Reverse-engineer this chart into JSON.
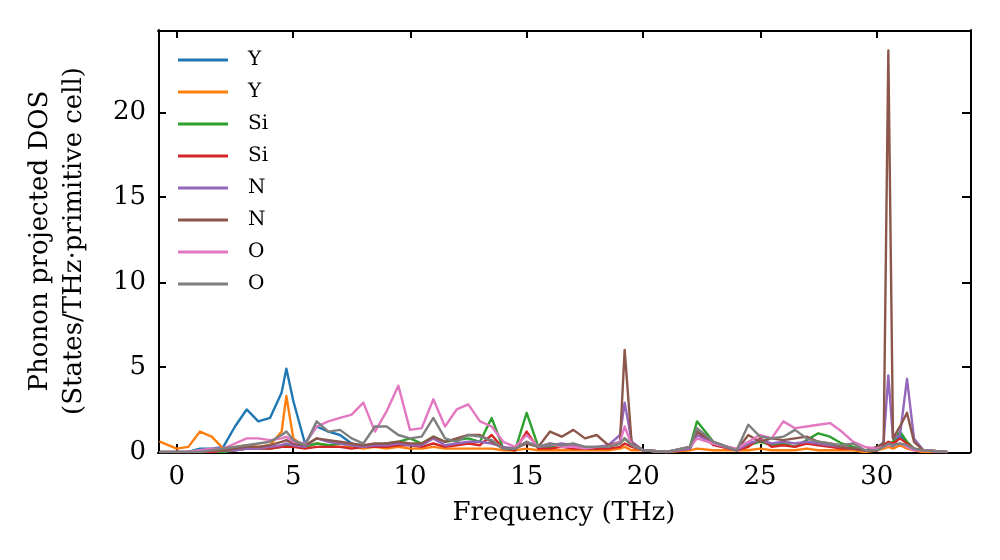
{
  "chart_data": {
    "type": "line",
    "xlabel": "Frequency (THz)",
    "ylabel": "Phonon projected DOS\n(States/THz·primitive cell)",
    "x": [
      -0.7,
      0,
      0.5,
      1,
      1.5,
      2,
      2.5,
      3,
      3.5,
      4,
      4.5,
      4.7,
      5,
      5.5,
      6,
      6.5,
      7,
      7.5,
      8,
      8.5,
      9,
      9.5,
      10,
      10.5,
      11,
      11.5,
      12,
      12.5,
      13,
      13.5,
      14,
      14.5,
      15,
      15.5,
      16,
      16.5,
      17,
      17.5,
      18,
      18.5,
      19,
      19.2,
      19.5,
      20,
      21,
      22,
      22.3,
      23,
      24,
      24.5,
      25,
      25.5,
      26,
      26.5,
      27,
      27.5,
      28,
      28.5,
      29,
      29.5,
      30,
      30.3,
      30.5,
      30.7,
      31,
      31.3,
      31.6,
      32,
      33
    ],
    "xlim": [
      -0.8,
      34
    ],
    "xticks": [
      0,
      5,
      10,
      15,
      20,
      25,
      30
    ],
    "ylim": [
      0,
      24.8
    ],
    "yticks": [
      0,
      5,
      10,
      15,
      20
    ],
    "grid": false,
    "legend": "top left",
    "marker": "none",
    "line_style": "solid",
    "series": [
      {
        "name": "Y",
        "color": "#1f77b4",
        "values": [
          null,
          null,
          0,
          0.2,
          0.2,
          0.3,
          1.5,
          2.5,
          1.8,
          2,
          3.5,
          4.9,
          3,
          0.5,
          1.5,
          1.2,
          1,
          0.5,
          null,
          null,
          null,
          null,
          null,
          null,
          null,
          null,
          null,
          null,
          null,
          null,
          null,
          null,
          null,
          null,
          null,
          null,
          null,
          null,
          null,
          null,
          null,
          null,
          null,
          null,
          null,
          null,
          null,
          null,
          null,
          null,
          null,
          null,
          null,
          null,
          null,
          null,
          null,
          null,
          null,
          null,
          0.1,
          0.3,
          0.5,
          0.3,
          1.0,
          0.5,
          0.2,
          null,
          null
        ]
      },
      {
        "name": "Y",
        "color": "#ff7f0e",
        "values": [
          0.6,
          0.2,
          0.3,
          1.2,
          0.9,
          0.2,
          0.3,
          0.4,
          0.3,
          0.4,
          1.2,
          3.3,
          0.8,
          0.3,
          0.5,
          0.4,
          0.3,
          0.3,
          0.2,
          0.3,
          0.2,
          0.3,
          0.2,
          0.2,
          0.3,
          0.2,
          0.2,
          0.2,
          0.2,
          0.2,
          0.1,
          0.1,
          0.2,
          0.1,
          0.1,
          0.1,
          0.1,
          0.1,
          0.1,
          0.1,
          0.2,
          0.3,
          0.1,
          0.1,
          0,
          0.1,
          0.2,
          0.1,
          0.1,
          0.1,
          0.2,
          0.1,
          0.1,
          0.1,
          0.2,
          0.1,
          0.1,
          0.1,
          0.1,
          0,
          0.1,
          0.2,
          0.3,
          0.2,
          0.4,
          0.2,
          0.1,
          0,
          0
        ]
      },
      {
        "name": "Si",
        "color": "#2ca02c",
        "values": [
          null,
          null,
          null,
          0,
          0,
          0,
          0.1,
          0.2,
          0.2,
          0.2,
          0.3,
          0.4,
          0.3,
          0.3,
          0.5,
          0.4,
          0.5,
          0.4,
          0.3,
          0.4,
          0.5,
          0.6,
          0.8,
          0.5,
          0.9,
          0.6,
          0.7,
          0.8,
          0.6,
          2.0,
          0.2,
          0.1,
          2.3,
          0.3,
          0.3,
          0.4,
          0.3,
          0.2,
          0.2,
          0.3,
          0.5,
          0.8,
          0.4,
          0.1,
          0,
          0.3,
          1.8,
          0.6,
          0.1,
          0.4,
          0.6,
          0.4,
          0.5,
          0.3,
          0.7,
          1.1,
          0.9,
          0.5,
          0.3,
          0.1,
          0.1,
          0.5,
          0.4,
          0.6,
          1.2,
          0.6,
          0.2,
          0.1,
          0
        ]
      },
      {
        "name": "Si",
        "color": "#d62728",
        "values": [
          null,
          null,
          0,
          0,
          0,
          0.1,
          0.1,
          0.2,
          0.2,
          0.2,
          0.3,
          0.3,
          0.3,
          0.2,
          0.3,
          0.3,
          0.3,
          0.2,
          0.3,
          0.3,
          0.3,
          0.4,
          0.4,
          0.3,
          0.5,
          0.3,
          0.4,
          0.5,
          0.4,
          1.0,
          0.2,
          0.1,
          1.2,
          0.2,
          0.2,
          0.3,
          0.2,
          0.2,
          0.2,
          0.2,
          0.3,
          0.5,
          0.3,
          0.1,
          0,
          0.2,
          1.2,
          0.4,
          0.1,
          0.3,
          0.8,
          0.3,
          0.4,
          0.3,
          0.5,
          0.4,
          0.3,
          0.2,
          0.2,
          0.1,
          0.1,
          0.4,
          0.6,
          0.5,
          0.8,
          0.5,
          0.2,
          0.1,
          0
        ]
      },
      {
        "name": "N",
        "color": "#9467bd",
        "values": [
          0,
          0,
          0,
          0,
          0.1,
          0.1,
          0.1,
          0.2,
          0.2,
          0.3,
          0.4,
          0.5,
          0.4,
          0.3,
          0.8,
          0.6,
          0.5,
          0.4,
          0.3,
          0.4,
          0.4,
          0.5,
          0.4,
          0.4,
          0.8,
          0.4,
          0.5,
          0.6,
          0.6,
          0.5,
          0.3,
          0.2,
          0.6,
          0.3,
          0.4,
          0.5,
          0.4,
          0.3,
          0.3,
          0.4,
          1.0,
          2.9,
          0.6,
          0.1,
          0,
          0.2,
          1.0,
          0.5,
          0.1,
          0.5,
          0.7,
          0.5,
          0.6,
          0.5,
          0.6,
          0.5,
          0.4,
          0.3,
          0.2,
          0.1,
          0.2,
          0.6,
          4.5,
          0.8,
          1.0,
          4.3,
          0.8,
          0.1,
          0
        ]
      },
      {
        "name": "N",
        "color": "#8c564b",
        "values": [
          0,
          0,
          0,
          0,
          0.1,
          0.1,
          0.2,
          0.3,
          0.3,
          0.4,
          0.6,
          0.7,
          0.5,
          0.4,
          0.8,
          0.7,
          0.6,
          0.5,
          0.4,
          0.5,
          0.5,
          0.6,
          0.5,
          0.5,
          0.9,
          0.6,
          0.8,
          1.0,
          1.0,
          0.6,
          0.2,
          0.2,
          0.5,
          0.3,
          1.2,
          0.9,
          1.3,
          0.8,
          1.0,
          0.4,
          0.6,
          6.0,
          0.5,
          0.1,
          0,
          0.3,
          1.2,
          0.6,
          0.1,
          1.0,
          0.6,
          0.8,
          0.7,
          0.8,
          0.9,
          0.6,
          0.5,
          0.3,
          0.2,
          0.1,
          0.3,
          0.5,
          23.6,
          0.8,
          1.5,
          2.3,
          0.6,
          0.1,
          0
        ]
      },
      {
        "name": "O",
        "color": "#e377c2",
        "values": [
          0,
          0,
          0,
          0.1,
          0.2,
          0.2,
          0.5,
          0.8,
          0.8,
          0.7,
          0.8,
          0.9,
          0.6,
          0.5,
          1.5,
          1.8,
          2.0,
          2.2,
          2.9,
          1.2,
          2.4,
          3.9,
          1.3,
          1.4,
          3.1,
          1.5,
          2.5,
          2.8,
          1.8,
          1.5,
          0.6,
          0.3,
          1.0,
          0.3,
          0.5,
          0.3,
          0.3,
          0.2,
          0.3,
          0.3,
          0.6,
          1.5,
          0.4,
          0.1,
          0,
          0.3,
          0.8,
          0.5,
          0.2,
          0.6,
          1.0,
          0.8,
          1.8,
          1.4,
          1.5,
          1.6,
          1.7,
          1.2,
          0.6,
          0.3,
          0.2,
          0.3,
          0.4,
          0.4,
          0.5,
          0.3,
          0.1,
          0.1,
          0
        ]
      },
      {
        "name": "O",
        "color": "#7f7f7f",
        "values": [
          0,
          0,
          0,
          0,
          0.1,
          0.2,
          0.3,
          0.4,
          0.5,
          0.6,
          1.0,
          1.2,
          0.7,
          0.4,
          1.8,
          1.2,
          1.3,
          0.8,
          0.5,
          1.5,
          1.5,
          1.0,
          0.8,
          0.9,
          2.0,
          0.8,
          0.6,
          1.0,
          0.9,
          0.7,
          0.2,
          0.2,
          0.6,
          0.3,
          0.5,
          0.4,
          0.5,
          0.3,
          0.3,
          0.3,
          0.5,
          0.8,
          0.4,
          0.1,
          0,
          0.3,
          1.4,
          0.6,
          0.1,
          1.6,
          0.9,
          0.8,
          0.9,
          1.3,
          0.8,
          0.6,
          0.5,
          0.4,
          0.5,
          0.1,
          0.1,
          0.3,
          0.5,
          0.4,
          0.5,
          0.4,
          0.2,
          0.1,
          0
        ]
      }
    ]
  }
}
